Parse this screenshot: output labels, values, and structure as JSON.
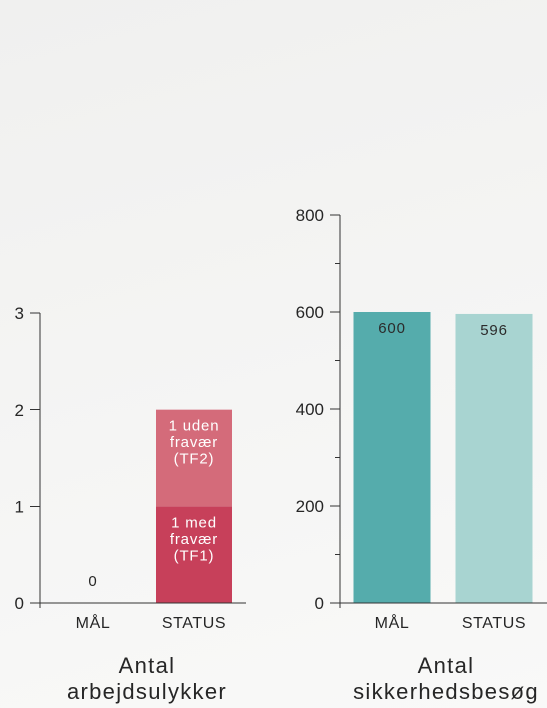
{
  "theme": {
    "text_color": "#262626",
    "axis_color": "#333333"
  },
  "chart_data": [
    {
      "type": "bar",
      "stacked": true,
      "title": [
        "Antal",
        "arbejdsulykker"
      ],
      "categories": [
        "MÅL",
        "STATUS"
      ],
      "ylim": [
        0,
        3
      ],
      "yticks": [
        0,
        1,
        2,
        3
      ],
      "series": [
        {
          "values": [
            0,
            1
          ],
          "color": "#C7405A",
          "label_color": "#FFFFFF",
          "data_labels": [
            [
              "0"
            ],
            [
              "1 med",
              "fravær",
              "(TF1)"
            ]
          ]
        },
        {
          "values": [
            0,
            1
          ],
          "color": "#D46B7A",
          "label_color": "#FFFFFF",
          "data_labels": [
            [],
            [
              "1 uden",
              "fravær",
              "(TF2)"
            ]
          ]
        }
      ]
    },
    {
      "type": "bar",
      "stacked": false,
      "title": [
        "Antal",
        "sikkerhedsbesøg"
      ],
      "categories": [
        "MÅL",
        "STATUS"
      ],
      "ylim": [
        0,
        800
      ],
      "yticks": [
        0,
        200,
        400,
        600,
        800
      ],
      "minor_yticks": [
        100,
        300,
        500,
        700
      ],
      "series": [
        {
          "values": [
            600,
            596
          ],
          "colors": [
            "#55ACAC",
            "#A8D4D1"
          ],
          "label_color": "#2B2B2B",
          "data_labels": [
            [
              "600"
            ],
            [
              "596"
            ]
          ]
        }
      ]
    }
  ]
}
